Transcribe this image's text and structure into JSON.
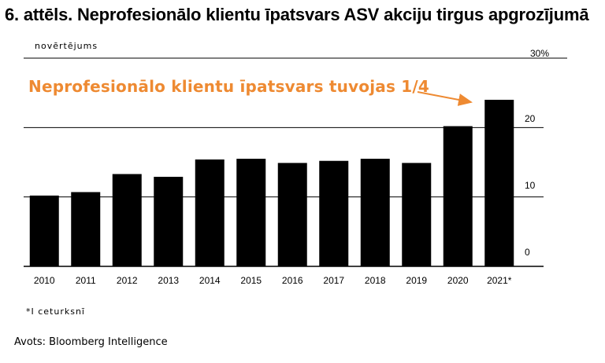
{
  "title": "6. attēls. Neprofesionālo klientu īpatsvars ASV akciju tirgus apgrozījumā",
  "source": "Avots: Bloomberg Intelligence",
  "chart_data": {
    "type": "bar",
    "categories": [
      "2010",
      "2011",
      "2012",
      "2013",
      "2014",
      "2015",
      "2016",
      "2017",
      "2018",
      "2019",
      "2020",
      "2021*"
    ],
    "values": [
      10.2,
      10.7,
      13.3,
      12.9,
      15.4,
      15.5,
      14.9,
      15.2,
      15.5,
      14.9,
      20.2,
      24.0
    ],
    "ylabel": "novērtējums",
    "ylim": [
      0,
      30
    ],
    "yticks": [
      "0",
      "10",
      "20",
      "30%"
    ],
    "annotation": "Neprofesionālo klientu īpatsvars tuvojas 1/4",
    "footnote": "*I ceturksnī",
    "bar_color": "#000000",
    "annotation_color": "#ee8a32",
    "grid": true,
    "y_axis_side": "right"
  }
}
